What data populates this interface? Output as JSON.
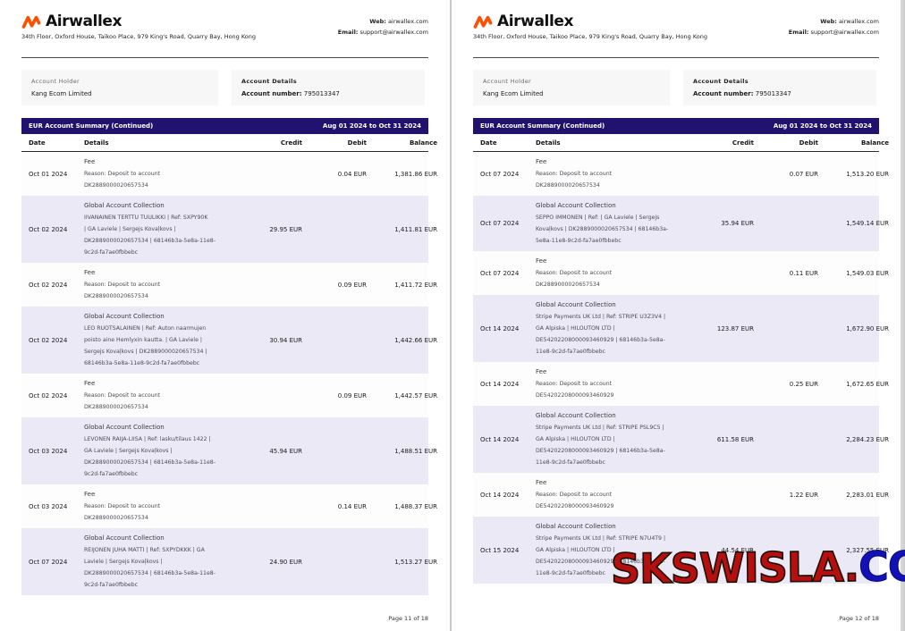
{
  "header": {
    "brand": "Airwallex",
    "address": "34th Floor, Oxford House, Taikoo Place, 979 King's Road, Quarry Bay, Hong Kong",
    "web_label": "Web:",
    "web_value": "airwallex.com",
    "email_label": "Email:",
    "email_value": "support@airwallex.com"
  },
  "account": {
    "holder_label": "Account Holder",
    "holder_value": "Kang Ecom Limited",
    "details_label": "Account Details",
    "number_label": "Account number:",
    "number_value": "795013347"
  },
  "table": {
    "title": "EUR Account Summary (Continued)",
    "period": "Aug 01 2024 to Oct 31 2024",
    "columns": [
      "Date",
      "Details",
      "Credit",
      "Debit",
      "Balance"
    ]
  },
  "colors": {
    "accent_orange": "#ff4f00",
    "band_purple": "#221270",
    "row_shade": "#ebe9f6",
    "watermark_red": "#b50f0f",
    "watermark_blue": "#1410b8"
  },
  "watermark": {
    "part1": "SKSWISLA",
    "dot": ".",
    "part2": "COM"
  },
  "pages": [
    {
      "footer": "Page 11 of 18",
      "rows": [
        {
          "type": "fee",
          "date": "Oct 01 2024",
          "title": "Fee",
          "lines": [
            "Reason: Deposit to account",
            "DK2889000020657534"
          ],
          "credit": "",
          "debit": "0.04 EUR",
          "balance": "1,381.86 EUR"
        },
        {
          "type": "gac",
          "date": "Oct 02 2024",
          "title": "Global Account Collection",
          "lines": [
            "IIVANAINEN TERTTU TUULIKKI | Ref: SXPY90K",
            "| GA Laviele | Sergejs Kovaļkovs |",
            "DK2889000020657534 | 68146b3a-5e8a-11e8-",
            "9c2d-fa7ae0fbbebc"
          ],
          "credit": "29.95 EUR",
          "debit": "",
          "balance": "1,411.81 EUR"
        },
        {
          "type": "fee",
          "date": "Oct 02 2024",
          "title": "Fee",
          "lines": [
            "Reason: Deposit to account",
            "DK2889000020657534"
          ],
          "credit": "",
          "debit": "0.09 EUR",
          "balance": "1,411.72 EUR"
        },
        {
          "type": "gac",
          "date": "Oct 02 2024",
          "title": "Global Account Collection",
          "lines": [
            "LEO RUOTSALAINEN | Ref: Auton naarmujen",
            "poisto aine Hemlyxin kautta. | GA Laviele |",
            "Sergejs Kovaļkovs | DK2889000020657534 |",
            "68146b3a-5e8a-11e8-9c2d-fa7ae0fbbebc"
          ],
          "credit": "30.94 EUR",
          "debit": "",
          "balance": "1,442.66 EUR"
        },
        {
          "type": "fee",
          "date": "Oct 02 2024",
          "title": "Fee",
          "lines": [
            "Reason: Deposit to account",
            "DK2889000020657534"
          ],
          "credit": "",
          "debit": "0.09 EUR",
          "balance": "1,442.57 EUR"
        },
        {
          "type": "gac",
          "date": "Oct 03 2024",
          "title": "Global Account Collection",
          "lines": [
            "LEVONEN RAIJA-LIISA | Ref: lasku/tilaus 1422 |",
            "GA Laviele | Sergejs Kovaļkovs |",
            "DK2889000020657534 | 68146b3a-5e8a-11e8-",
            "9c2d-fa7ae0fbbebc"
          ],
          "credit": "45.94 EUR",
          "debit": "",
          "balance": "1,488.51 EUR"
        },
        {
          "type": "fee",
          "date": "Oct 03 2024",
          "title": "Fee",
          "lines": [
            "Reason: Deposit to account",
            "DK2889000020657534"
          ],
          "credit": "",
          "debit": "0.14 EUR",
          "balance": "1,488.37 EUR"
        },
        {
          "type": "gac",
          "date": "Oct 07 2024",
          "title": "Global Account Collection",
          "lines": [
            "REIJONEN JUHA MATTI | Ref: SXPYDKKK | GA",
            "Laviele | Sergejs Kovaļkovs |",
            "DK2889000020657534 | 68146b3a-5e8a-11e8-",
            "9c2d-fa7ae0fbbebc"
          ],
          "credit": "24.90 EUR",
          "debit": "",
          "balance": "1,513.27 EUR"
        }
      ]
    },
    {
      "footer": "Page 12 of 18",
      "rows": [
        {
          "type": "fee",
          "date": "Oct 07 2024",
          "title": "Fee",
          "lines": [
            "Reason: Deposit to account",
            "DK2889000020657534"
          ],
          "credit": "",
          "debit": "0.07 EUR",
          "balance": "1,513.20 EUR"
        },
        {
          "type": "gac",
          "date": "Oct 07 2024",
          "title": "Global Account Collection",
          "lines": [
            "SEPPO IMMONEN | Ref: | GA Laviele | Sergejs",
            "Kovaļkovs | DK2889000020657534 | 68146b3a-",
            "5e8a-11e8-9c2d-fa7ae0fbbebc"
          ],
          "credit": "35.94 EUR",
          "debit": "",
          "balance": "1,549.14 EUR"
        },
        {
          "type": "fee",
          "date": "Oct 07 2024",
          "title": "Fee",
          "lines": [
            "Reason: Deposit to account",
            "DK2889000020657534"
          ],
          "credit": "",
          "debit": "0.11 EUR",
          "balance": "1,549.03 EUR"
        },
        {
          "type": "gac",
          "date": "Oct 14 2024",
          "title": "Global Account Collection",
          "lines": [
            "Stripe Payments UK Ltd | Ref: STRIPE U3Z3V4 |",
            "GA Alpiska | HILOUTON LTD |",
            "DE54202208000093460929 | 68146b3a-5e8a-",
            "11e8-9c2d-fa7ae0fbbebc"
          ],
          "credit": "123.87 EUR",
          "debit": "",
          "balance": "1,672.90 EUR"
        },
        {
          "type": "fee",
          "date": "Oct 14 2024",
          "title": "Fee",
          "lines": [
            "Reason: Deposit to account",
            "DE54202208000093460929"
          ],
          "credit": "",
          "debit": "0.25 EUR",
          "balance": "1,672.65 EUR"
        },
        {
          "type": "gac",
          "date": "Oct 14 2024",
          "title": "Global Account Collection",
          "lines": [
            "Stripe Payments UK Ltd | Ref: STRIPE PSL9C5 |",
            "GA Alpiska | HILOUTON LTD |",
            "DE54202208000093460929 | 68146b3a-5e8a-",
            "11e8-9c2d-fa7ae0fbbebc"
          ],
          "credit": "611.58 EUR",
          "debit": "",
          "balance": "2,284.23 EUR"
        },
        {
          "type": "fee",
          "date": "Oct 14 2024",
          "title": "Fee",
          "lines": [
            "Reason: Deposit to account",
            "DE54202208000093460929"
          ],
          "credit": "",
          "debit": "1.22 EUR",
          "balance": "2,283.01 EUR"
        },
        {
          "type": "gac",
          "date": "Oct 15 2024",
          "title": "Global Account Collection",
          "lines": [
            "Stripe Payments UK Ltd | Ref: STRIPE N7U4T9 |",
            "GA Alpiska | HILOUTON LTD |",
            "DE54202208000093460929 | 68146b3a-5e8a-",
            "11e8-9c2d-fa7ae0fbbebc"
          ],
          "credit": "44.54 EUR",
          "debit": "",
          "balance": "2,327.55 EUR"
        }
      ]
    }
  ]
}
